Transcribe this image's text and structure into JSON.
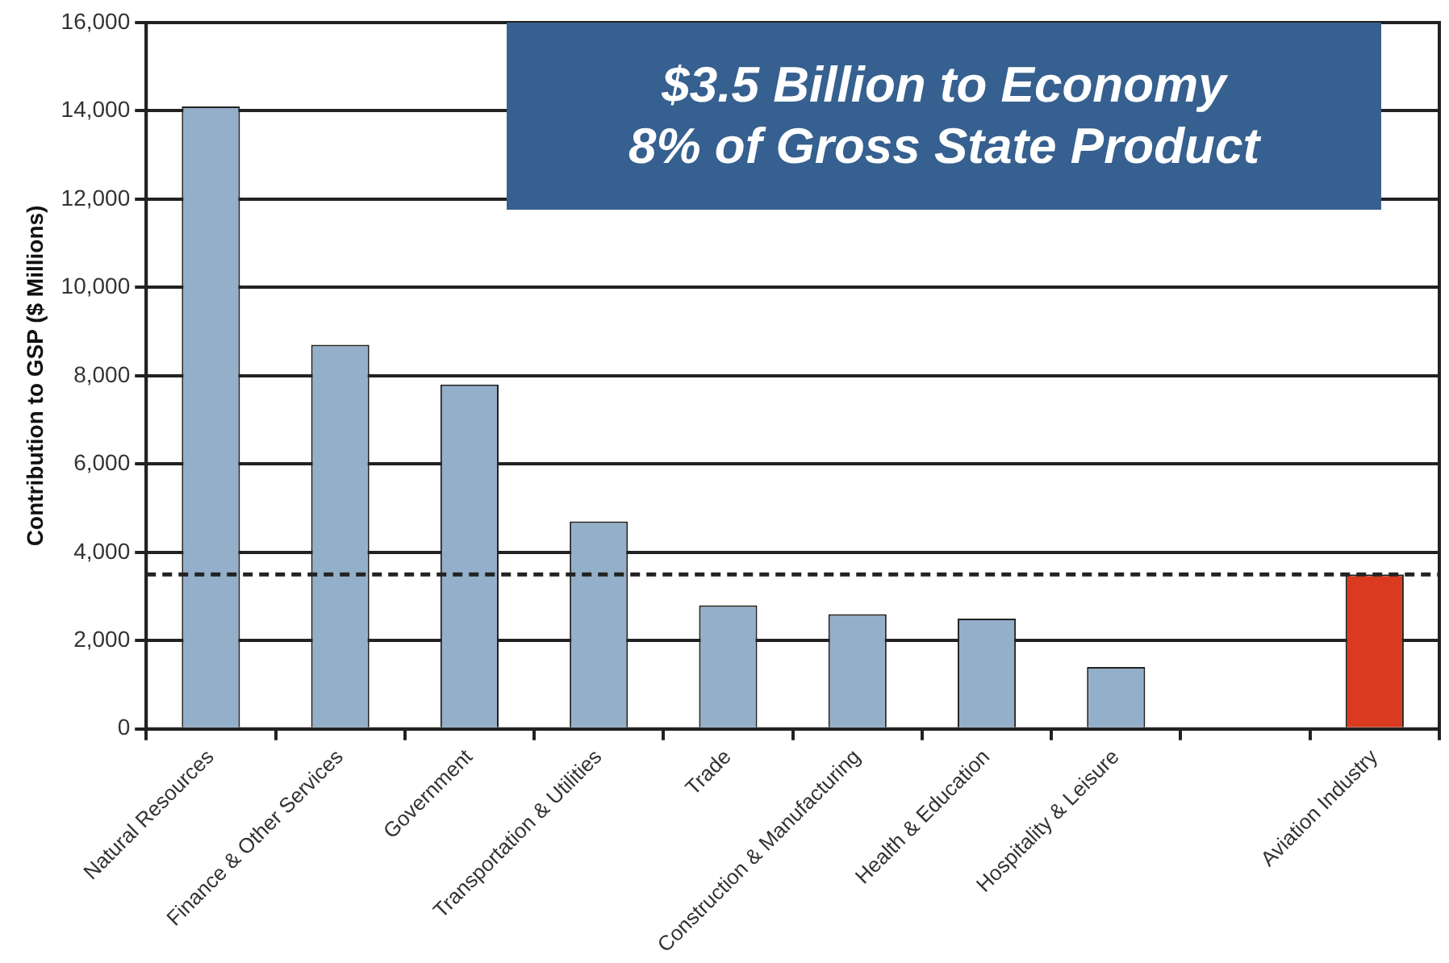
{
  "chart_data": {
    "type": "bar",
    "ylabel": "Contribution to GSP ($ Millions)",
    "categories": [
      "Natural Resources",
      "Finance & Other Services",
      "Government",
      "Transportation & Utilities",
      "Trade",
      "Construction & Manufacturing",
      "Health & Education",
      "Hospitality & Leisure",
      null,
      "Aviation Industry"
    ],
    "values": [
      14100,
      8700,
      7800,
      4700,
      2800,
      2600,
      2500,
      1400,
      null,
      3500
    ],
    "colors": [
      "#94afc9",
      "#94afc9",
      "#94afc9",
      "#94afc9",
      "#94afc9",
      "#94afc9",
      "#94afc9",
      "#94afc9",
      "#94afc9",
      "#d93a20"
    ],
    "ylim": [
      0,
      16000
    ],
    "yticks": [
      {
        "value": 0,
        "label": "0"
      },
      {
        "value": 2000,
        "label": "2,000"
      },
      {
        "value": 4000,
        "label": "4,000"
      },
      {
        "value": 6000,
        "label": "6,000"
      },
      {
        "value": 8000,
        "label": "8,000"
      },
      {
        "value": 10000,
        "label": "10,000"
      },
      {
        "value": 12000,
        "label": "12,000"
      },
      {
        "value": 14000,
        "label": "14,000"
      },
      {
        "value": 16000,
        "label": "16,000"
      }
    ],
    "grid": "y",
    "legend": false,
    "ref_lines": [
      {
        "axis": "y",
        "value": 3500,
        "line_style": "dashed",
        "color": "#222222"
      }
    ],
    "annotations": [
      "$3.5 Billion to Economy",
      "8% of Gross State Product"
    ]
  }
}
